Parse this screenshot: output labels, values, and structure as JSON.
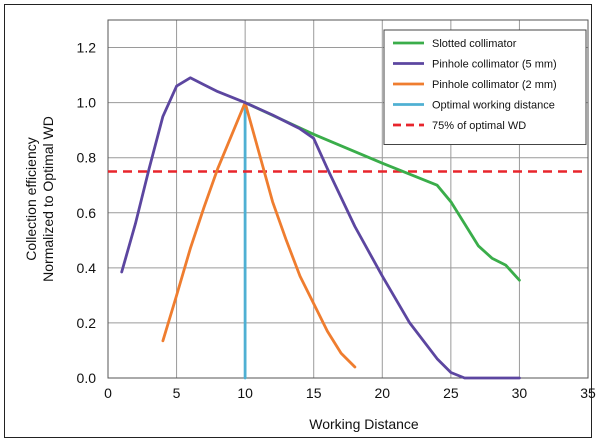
{
  "chart_data": {
    "type": "line",
    "xlabel": "Working Distance",
    "ylabel": [
      "Collection efficiency",
      "Normalized to Optimal WD"
    ],
    "xlim": [
      0,
      35
    ],
    "ylim": [
      0.0,
      1.3
    ],
    "x_ticks": [
      "0",
      "5",
      "10",
      "15",
      "20",
      "25",
      "30",
      "35"
    ],
    "y_ticks": [
      "0.0",
      "0.2",
      "0.4",
      "0.6",
      "0.8",
      "1.0",
      "1.2"
    ],
    "grid": true,
    "legend_position": "top-right",
    "series": [
      {
        "name": "Slotted collimator",
        "color": "#3aad4a",
        "style": "solid",
        "points": [
          [
            10,
            1.0
          ],
          [
            15,
            0.885
          ],
          [
            20,
            0.78
          ],
          [
            22,
            0.74
          ],
          [
            24,
            0.7
          ],
          [
            25,
            0.64
          ],
          [
            26,
            0.56
          ],
          [
            27,
            0.48
          ],
          [
            28,
            0.435
          ],
          [
            29,
            0.41
          ],
          [
            30,
            0.355
          ]
        ]
      },
      {
        "name": "Pinhole collimator (5 mm)",
        "color": "#5c46a0",
        "style": "solid",
        "points": [
          [
            1,
            0.385
          ],
          [
            2,
            0.56
          ],
          [
            3,
            0.76
          ],
          [
            4,
            0.95
          ],
          [
            5,
            1.06
          ],
          [
            6,
            1.09
          ],
          [
            7,
            1.065
          ],
          [
            8,
            1.04
          ],
          [
            9,
            1.02
          ],
          [
            10,
            1.0
          ],
          [
            12,
            0.955
          ],
          [
            14,
            0.905
          ],
          [
            15,
            0.87
          ],
          [
            16,
            0.76
          ],
          [
            18,
            0.55
          ],
          [
            20,
            0.37
          ],
          [
            22,
            0.2
          ],
          [
            24,
            0.07
          ],
          [
            25,
            0.02
          ],
          [
            26,
            0.0
          ],
          [
            27,
            0.0
          ],
          [
            30,
            0.0
          ]
        ]
      },
      {
        "name": "Pinhole collimator (2 mm)",
        "color": "#ef7d2f",
        "style": "solid",
        "points": [
          [
            4,
            0.135
          ],
          [
            5,
            0.3
          ],
          [
            6,
            0.47
          ],
          [
            7,
            0.62
          ],
          [
            8,
            0.76
          ],
          [
            9,
            0.88
          ],
          [
            10,
            1.0
          ],
          [
            11,
            0.82
          ],
          [
            12,
            0.64
          ],
          [
            13,
            0.5
          ],
          [
            14,
            0.37
          ],
          [
            15,
            0.27
          ],
          [
            16,
            0.17
          ],
          [
            17,
            0.09
          ],
          [
            18,
            0.04
          ]
        ]
      },
      {
        "name": "Optimal working distance",
        "color": "#4fb0d3",
        "style": "solid",
        "points": [
          [
            10,
            0.0
          ],
          [
            10,
            1.0
          ]
        ]
      },
      {
        "name": "75% of optimal WD",
        "color": "#e8252c",
        "style": "dashed",
        "points": [
          [
            0,
            0.75
          ],
          [
            35,
            0.75
          ]
        ]
      }
    ]
  }
}
